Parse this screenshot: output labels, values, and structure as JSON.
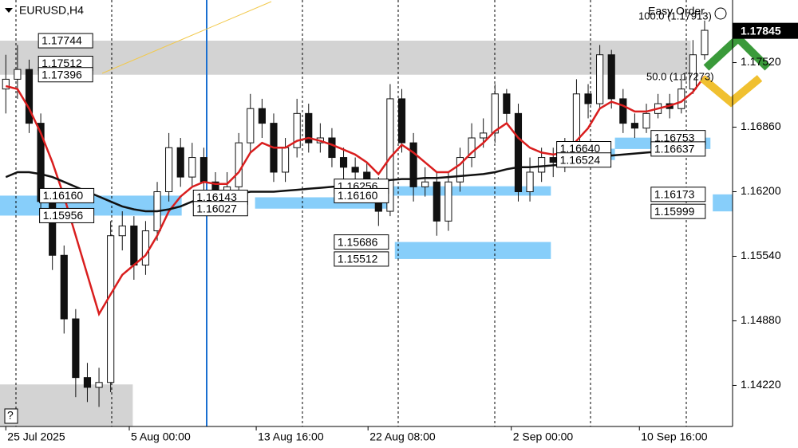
{
  "chart_data": {
    "type": "candlestick",
    "title": "EURUSD,H4",
    "xlim": [
      -0.5,
      62.4
    ],
    "ylim": [
      1.138,
      1.1816
    ],
    "yticks": [
      {
        "value": 1.1752,
        "label": "1.17520"
      },
      {
        "value": 1.1686,
        "label": "1.16860"
      },
      {
        "value": 1.162,
        "label": "1.16200"
      },
      {
        "value": 1.1554,
        "label": "1.15540"
      },
      {
        "value": 1.1488,
        "label": "1.14880"
      },
      {
        "value": 1.1422,
        "label": "1.14220"
      }
    ],
    "xticks": [
      {
        "value": 0,
        "label": "25 Jul 2025"
      },
      {
        "value": 10.6,
        "label": "5 Aug 00:00"
      },
      {
        "value": 21.5,
        "label": "13 Aug 16:00"
      },
      {
        "value": 31.1,
        "label": "22 Aug 08:00"
      },
      {
        "value": 43.4,
        "label": "2 Sep 00:00"
      },
      {
        "value": 54.4,
        "label": "10 Sep 16:00"
      }
    ],
    "open": [
      1.1725,
      1.1735,
      1.1745,
      1.169,
      1.161,
      1.1555,
      1.149,
      1.143,
      1.142,
      1.1425,
      1.1575,
      1.1585,
      1.1545,
      1.158,
      1.162,
      1.1665,
      1.1635,
      1.1655,
      1.163,
      1.161,
      1.1625,
      1.167,
      1.1705,
      1.169,
      1.164,
      1.1665,
      1.17,
      1.167,
      1.1675,
      1.1655,
      1.1645,
      1.164,
      1.1625,
      1.16,
      1.1715,
      1.167,
      1.1625,
      1.163,
      1.159,
      1.163,
      1.1655,
      1.1675,
      1.168,
      1.172,
      1.17,
      1.162,
      1.164,
      1.1655,
      1.165,
      1.166,
      1.172,
      1.171,
      1.176,
      1.1715,
      1.169,
      1.1685,
      1.17,
      1.171,
      1.1705,
      1.1725,
      1.176
    ],
    "high": [
      1.176,
      1.177,
      1.1755,
      1.17,
      1.162,
      1.1565,
      1.15,
      1.1445,
      1.144,
      1.159,
      1.16,
      1.1595,
      1.159,
      1.163,
      1.168,
      1.1675,
      1.167,
      1.1665,
      1.164,
      1.164,
      1.168,
      1.172,
      1.1715,
      1.17,
      1.1675,
      1.1715,
      1.171,
      1.169,
      1.1685,
      1.1665,
      1.1655,
      1.165,
      1.1635,
      1.173,
      1.1725,
      1.168,
      1.1645,
      1.164,
      1.164,
      1.1665,
      1.169,
      1.1695,
      1.173,
      1.1725,
      1.171,
      1.1655,
      1.1665,
      1.1665,
      1.1675,
      1.1735,
      1.173,
      1.177,
      1.1765,
      1.1725,
      1.17,
      1.171,
      1.172,
      1.172,
      1.174,
      1.1775,
      1.1795
    ],
    "low": [
      1.17,
      1.1715,
      1.168,
      1.16,
      1.154,
      1.1475,
      1.141,
      1.1405,
      1.14,
      1.1415,
      1.156,
      1.153,
      1.1535,
      1.157,
      1.161,
      1.1625,
      1.1625,
      1.1615,
      1.1595,
      1.16,
      1.1615,
      1.166,
      1.1675,
      1.163,
      1.163,
      1.1655,
      1.166,
      1.166,
      1.1645,
      1.163,
      1.1625,
      1.161,
      1.1585,
      1.1595,
      1.166,
      1.161,
      1.1615,
      1.1575,
      1.158,
      1.162,
      1.1645,
      1.1665,
      1.167,
      1.169,
      1.161,
      1.161,
      1.163,
      1.1635,
      1.164,
      1.1655,
      1.1695,
      1.1705,
      1.1705,
      1.168,
      1.1675,
      1.168,
      1.1695,
      1.1695,
      1.17,
      1.172,
      1.1755
    ],
    "close": [
      1.1735,
      1.1745,
      1.169,
      1.161,
      1.1555,
      1.149,
      1.143,
      1.142,
      1.1425,
      1.1575,
      1.1585,
      1.1545,
      1.158,
      1.162,
      1.1665,
      1.1635,
      1.1655,
      1.163,
      1.161,
      1.1625,
      1.167,
      1.1705,
      1.169,
      1.164,
      1.1665,
      1.17,
      1.167,
      1.1675,
      1.1655,
      1.1645,
      1.164,
      1.1625,
      1.16,
      1.1715,
      1.167,
      1.1625,
      1.163,
      1.159,
      1.163,
      1.1655,
      1.1675,
      1.168,
      1.172,
      1.17,
      1.162,
      1.164,
      1.1655,
      1.165,
      1.166,
      1.172,
      1.171,
      1.176,
      1.1715,
      1.169,
      1.1685,
      1.17,
      1.171,
      1.1705,
      1.1725,
      1.176,
      1.1785
    ],
    "series": [
      {
        "color": "#d91e1e",
        "values": [
          1.1728,
          1.1725,
          1.1705,
          1.168,
          1.165,
          1.1615,
          1.1575,
          1.1535,
          1.1495,
          1.1515,
          1.1535,
          1.1545,
          1.1555,
          1.1575,
          1.16,
          1.1615,
          1.1625,
          1.163,
          1.1628,
          1.1628,
          1.164,
          1.166,
          1.167,
          1.1665,
          1.1665,
          1.1672,
          1.1675,
          1.1672,
          1.1668,
          1.1663,
          1.1658,
          1.165,
          1.1638,
          1.1655,
          1.1668,
          1.166,
          1.165,
          1.164,
          1.164,
          1.1648,
          1.166,
          1.167,
          1.1682,
          1.169,
          1.1675,
          1.1665,
          1.166,
          1.1658,
          1.166,
          1.1672,
          1.1685,
          1.1705,
          1.1712,
          1.1708,
          1.1702,
          1.1702,
          1.1705,
          1.1708,
          1.1712,
          1.1722,
          1.1738
        ]
      },
      {
        "color": "#111111",
        "values": [
          1.1635,
          1.164,
          1.164,
          1.1638,
          1.1635,
          1.163,
          1.1625,
          1.162,
          1.1615,
          1.161,
          1.1605,
          1.1602,
          1.16,
          1.16,
          1.1602,
          1.1605,
          1.161,
          1.1613,
          1.1615,
          1.1616,
          1.1618,
          1.162,
          1.162,
          1.162,
          1.1621,
          1.1622,
          1.1623,
          1.1624,
          1.1625,
          1.1626,
          1.1627,
          1.1628,
          1.1629,
          1.1632,
          1.1633,
          1.1633,
          1.1634,
          1.1634,
          1.1635,
          1.1636,
          1.1637,
          1.1638,
          1.164,
          1.1643,
          1.1645,
          1.1645,
          1.1646,
          1.1647,
          1.1648,
          1.165,
          1.1652,
          1.1655,
          1.1657,
          1.1658,
          1.1659,
          1.166,
          1.1661,
          1.1663,
          1.1665,
          1.1667,
          1.167
        ]
      }
    ],
    "zones": [
      {
        "color": "#d3d3d3",
        "levels": [
          1.17744,
          1.17512,
          1.17396
        ],
        "from": -0.5,
        "to": 58.8,
        "label_at": 2.8
      },
      {
        "color": "#87cefa",
        "levels": [
          {
            "value": 1.1616,
            "label": "1.16160"
          },
          1.15956
        ],
        "from": -0.5,
        "to": 15.1,
        "label_at": 2.9
      },
      {
        "color": "#87cefa",
        "levels": [
          1.16143,
          1.16027
        ],
        "from": 21.4,
        "to": 33.1,
        "label_at": 16.1
      },
      {
        "color": "#87cefa",
        "levels": [
          1.16256,
          {
            "value": 1.1616,
            "label": "1.16160"
          }
        ],
        "from": 33.1,
        "to": 46.8,
        "label_at": 28.2
      },
      {
        "color": "#87cefa",
        "levels": [
          1.15686,
          1.15512
        ],
        "from": 33.4,
        "to": 46.8,
        "label_at": 28.2
      },
      {
        "color": "#87cefa",
        "levels": [
          {
            "value": 1.1664,
            "label": "1.16640"
          },
          1.16524
        ],
        "from": 47.3,
        "to": 52.3,
        "label_at": 47.3
      },
      {
        "color": "#87cefa",
        "levels": [
          1.16753,
          1.16637
        ],
        "from": 52.3,
        "to": 60.5,
        "label_at": 55.4
      },
      {
        "color": "#87cefa",
        "levels": [
          1.16173,
          1.15999
        ],
        "from": 60.7,
        "to": 62.4,
        "label_at": 55.4
      }
    ],
    "boxes": [
      {
        "color": "#d3d3d3",
        "top": 1.1423,
        "bottom": 1.138,
        "from": -0.5,
        "to": 10.9
      }
    ],
    "current": 1.17845,
    "overlay": {
      "name": "Easy Order",
      "level_100": "100.0 (1.17913)",
      "level_50": "50.0 (1.17273)"
    }
  }
}
